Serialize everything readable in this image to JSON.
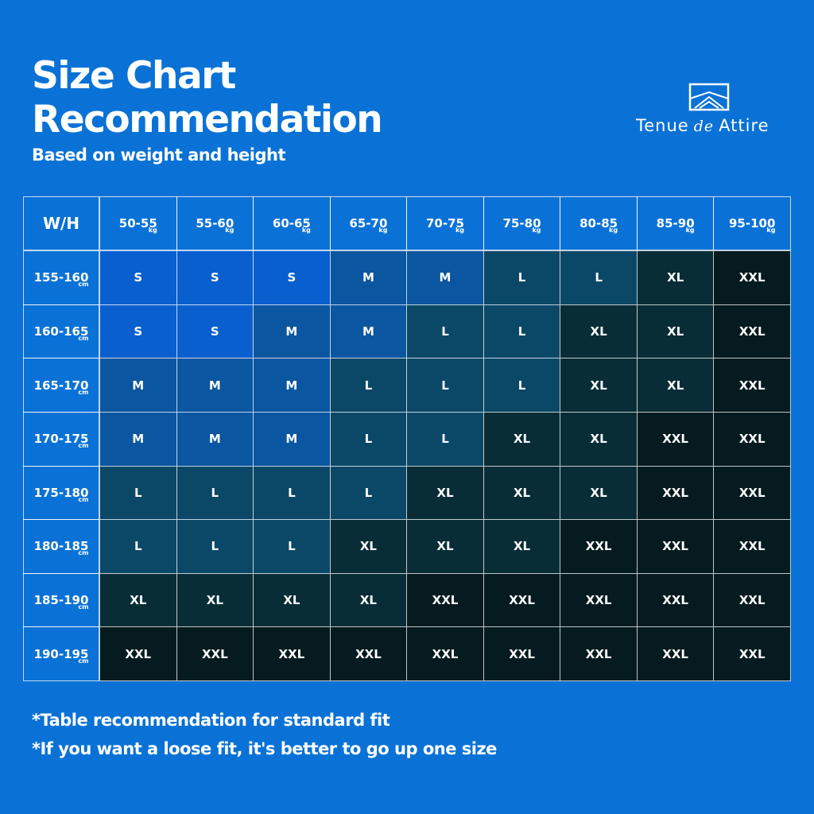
{
  "header": {
    "title": [
      "Size Chart",
      "Recommendation"
    ],
    "subtitle": "Based on weight and height"
  },
  "brand": {
    "words": [
      "Tenue",
      "de",
      "Attire"
    ]
  },
  "table": {
    "corner": "W/H",
    "columns": [
      {
        "range": "50-55",
        "unit": "kg"
      },
      {
        "range": "55-60",
        "unit": "kg"
      },
      {
        "range": "60-65",
        "unit": "kg"
      },
      {
        "range": "65-70",
        "unit": "kg"
      },
      {
        "range": "70-75",
        "unit": "kg"
      },
      {
        "range": "75-80",
        "unit": "kg"
      },
      {
        "range": "80-85",
        "unit": "kg"
      },
      {
        "range": "85-90",
        "unit": "kg"
      },
      {
        "range": "95-100",
        "unit": "kg"
      }
    ],
    "rows": [
      {
        "range": "155-160",
        "unit": "cm",
        "sizes": [
          "S",
          "S",
          "S",
          "M",
          "M",
          "L",
          "L",
          "XL",
          "XXL"
        ]
      },
      {
        "range": "160-165",
        "unit": "cm",
        "sizes": [
          "S",
          "S",
          "M",
          "M",
          "L",
          "L",
          "XL",
          "XL",
          "XXL"
        ]
      },
      {
        "range": "165-170",
        "unit": "cm",
        "sizes": [
          "M",
          "M",
          "M",
          "L",
          "L",
          "L",
          "XL",
          "XL",
          "XXL"
        ]
      },
      {
        "range": "170-175",
        "unit": "cm",
        "sizes": [
          "M",
          "M",
          "M",
          "L",
          "L",
          "XL",
          "XL",
          "XXL",
          "XXL"
        ]
      },
      {
        "range": "175-180",
        "unit": "cm",
        "sizes": [
          "L",
          "L",
          "L",
          "L",
          "XL",
          "XL",
          "XL",
          "XXL",
          "XXL"
        ]
      },
      {
        "range": "180-185",
        "unit": "cm",
        "sizes": [
          "L",
          "L",
          "L",
          "XL",
          "XL",
          "XL",
          "XXL",
          "XXL",
          "XXL"
        ]
      },
      {
        "range": "185-190",
        "unit": "cm",
        "sizes": [
          "XL",
          "XL",
          "XL",
          "XL",
          "XXL",
          "XXL",
          "XXL",
          "XXL",
          "XXL"
        ]
      },
      {
        "range": "190-195",
        "unit": "cm",
        "sizes": [
          "XXL",
          "XXL",
          "XXL",
          "XXL",
          "XXL",
          "XXL",
          "XXL",
          "XXL",
          "XXL"
        ]
      }
    ],
    "size_colors": {
      "S": "#0a5fcf",
      "M": "#0b56a0",
      "L": "#0b4868",
      "XL": "#082d37",
      "XXL": "#051b1f"
    }
  },
  "notes": [
    "*Table recommendation for standard fit",
    "*If you want a loose fit, it's better to go up one size"
  ]
}
